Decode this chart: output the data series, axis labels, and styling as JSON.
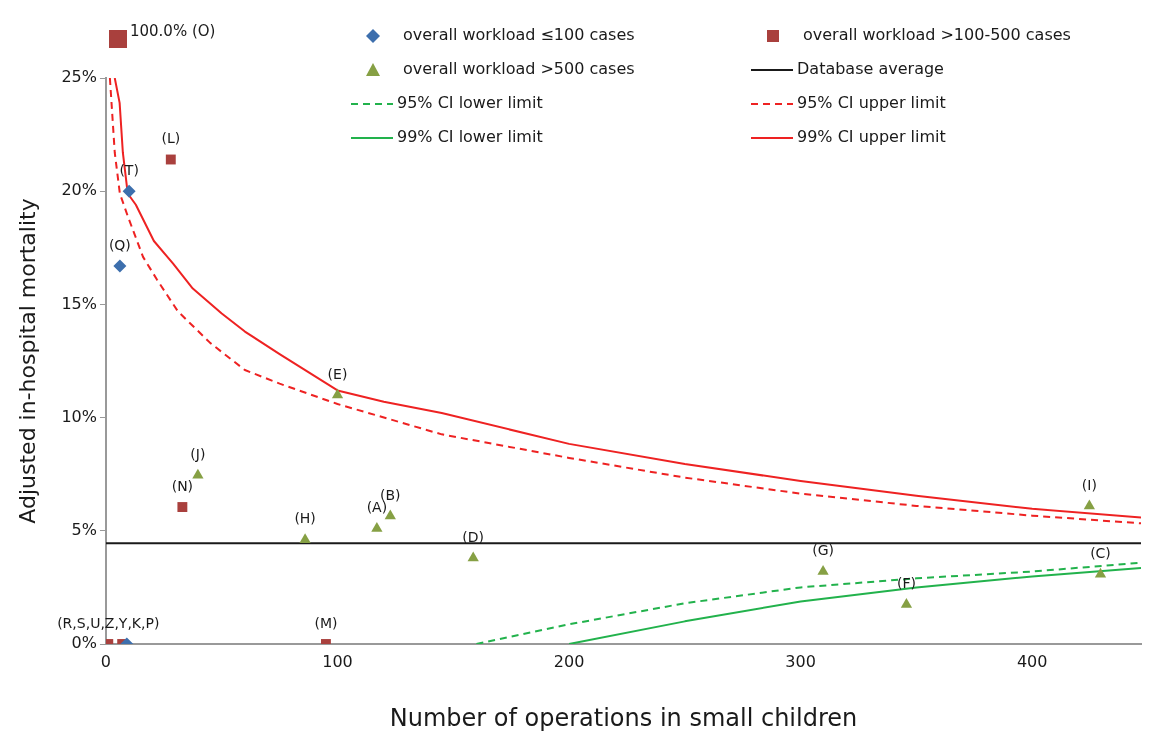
{
  "chart_data": {
    "type": "scatter",
    "xlabel": "Number of operations in small children",
    "ylabel": "Adjusted in-hospital mortality",
    "xlim": [
      0,
      447
    ],
    "xticks": [
      0,
      100,
      200,
      300,
      400
    ],
    "ylim": [
      0,
      25
    ],
    "yticks": [
      {
        "value": 0,
        "label": "0%"
      },
      {
        "value": 5,
        "label": "5%"
      },
      {
        "value": 10,
        "label": "10%"
      },
      {
        "value": 15,
        "label": "15%"
      },
      {
        "value": 20,
        "label": "20%"
      },
      {
        "value": 25,
        "label": "25%"
      }
    ],
    "grid": false,
    "legend": "top right",
    "annotations": [
      "100.0% (O)"
    ],
    "series": [
      {
        "name": "overall workload ≤100 cases",
        "type": "scatter",
        "marker": "diamond",
        "color": "#3d6fad",
        "x": [
          6,
          10,
          9
        ],
        "values": [
          16.7,
          20.0,
          0
        ],
        "value_labels": [
          "(Q)",
          "(T)",
          null
        ]
      },
      {
        "name": "overall workload >100-500 cases",
        "type": "scatter",
        "marker": "square",
        "color": "#a9403d",
        "x": [
          28,
          33,
          95,
          1,
          7
        ],
        "values": [
          21.4,
          6.05,
          0,
          0,
          0
        ],
        "value_labels": [
          "(L)",
          "(N)",
          "(M)",
          "(R,S,U,Z,Y,K,P)",
          null
        ]
      },
      {
        "name": "overall workload >500 cases",
        "type": "scatter",
        "marker": "triangle",
        "color": "#86a044",
        "x": [
          117,
          122.8,
          429.5,
          158.6,
          100,
          345.7,
          309.7,
          86,
          424.7,
          39.7
        ],
        "values": [
          5.1,
          5.65,
          3.08,
          3.8,
          11.0,
          1.75,
          3.2,
          4.6,
          6.1,
          7.45
        ],
        "value_labels": [
          "(A)",
          "(B)",
          "(C)",
          "(D)",
          "(E)",
          "(F)",
          "(G)",
          "(H)",
          "(I)",
          "(J)"
        ]
      },
      {
        "name": "Database average",
        "type": "line",
        "line_style": "solid",
        "color": "#1a1a1a",
        "x": [
          0,
          447
        ],
        "values": [
          4.45,
          4.45
        ]
      },
      {
        "name": "95% CI lower limit",
        "type": "line",
        "line_style": "dashed",
        "color": "#22b24c",
        "x": [
          160,
          200,
          250,
          300,
          350,
          400,
          447
        ],
        "values": [
          0,
          0.87,
          1.8,
          2.5,
          2.9,
          3.2,
          3.59
        ]
      },
      {
        "name": "95% CI upper limit",
        "type": "line",
        "line_style": "dashed",
        "color": "#ee2222",
        "x": [
          1.7,
          2.4,
          3.8,
          6,
          9.4,
          16,
          22,
          31,
          45,
          60,
          75,
          100,
          145,
          200,
          250,
          300,
          350,
          400,
          447
        ],
        "values": [
          25,
          23.9,
          21.7,
          19.9,
          18.9,
          17.1,
          16.1,
          14.7,
          13.3,
          12.1,
          11.5,
          10.6,
          9.26,
          8.22,
          7.35,
          6.64,
          6.1,
          5.67,
          5.33
        ]
      },
      {
        "name": "99% CI lower limit",
        "type": "line",
        "line_style": "solid",
        "color": "#22b24c",
        "x": [
          200,
          250,
          300,
          350,
          400,
          447
        ],
        "values": [
          0,
          1.0,
          1.88,
          2.5,
          2.98,
          3.36
        ]
      },
      {
        "name": "99% CI upper limit",
        "type": "line",
        "line_style": "solid",
        "color": "#ee2222",
        "x": [
          3.8,
          5.9,
          7.3,
          9.4,
          12.9,
          20.7,
          29,
          37.5,
          50,
          60,
          75,
          100,
          120,
          145,
          200,
          250,
          300,
          350,
          400,
          447
        ],
        "values": [
          25,
          23.9,
          21.7,
          19.9,
          19.4,
          17.8,
          16.8,
          15.7,
          14.6,
          13.8,
          12.8,
          11.2,
          10.7,
          10.2,
          8.84,
          7.95,
          7.2,
          6.55,
          5.97,
          5.59
        ]
      }
    ]
  }
}
